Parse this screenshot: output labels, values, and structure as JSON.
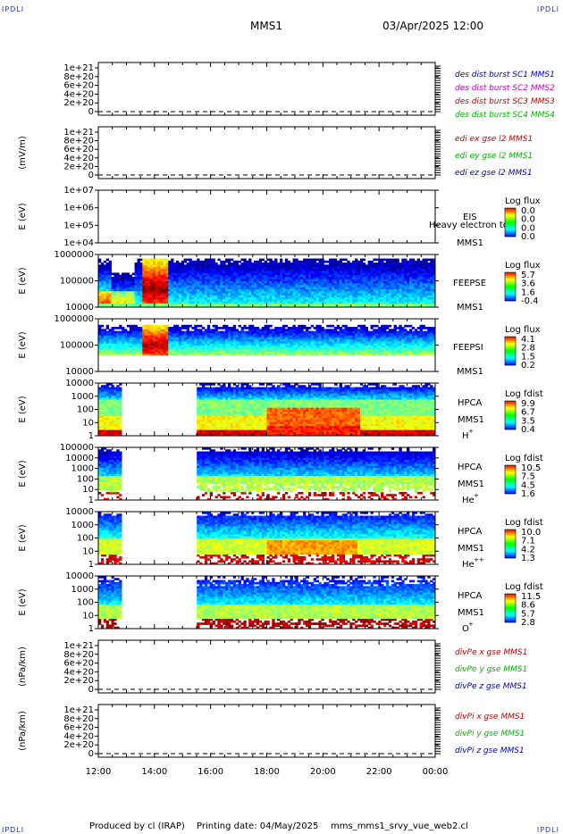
{
  "corners": {
    "tl": "IPDLI",
    "tr": "IPDLI",
    "bl": "IPDLI",
    "br": "IPDLI"
  },
  "header": {
    "spacecraft": "MMS1",
    "datetime": "03/Apr/2025 12:00"
  },
  "footer": {
    "producer": "Produced by cl (IRAP)",
    "printing": "Printing date: 04/May/2025",
    "script": "mms_mms1_srvy_vue_web2.cl"
  },
  "chart_data": {
    "type": "heatmap",
    "x_ticks": [
      "12:00",
      "14:00",
      "16:00",
      "18:00",
      "20:00",
      "22:00",
      "00:00"
    ],
    "x_range_hours": [
      12,
      24
    ],
    "panels": [
      {
        "kind": "line",
        "ylabel": "",
        "yticks": [
          "1e+21",
          "8e+20",
          "6e+20",
          "4e+20",
          "2e+20",
          "0"
        ],
        "legend": [
          {
            "text": "des dist burst SC1 MMS1",
            "color": "#0000cc"
          },
          {
            "text": "des dist burst SC2 MMS2",
            "color": "#cc00cc"
          },
          {
            "text": "des dist burst SC3 MMS3",
            "color": "#cc0000"
          },
          {
            "text": "des dist burst SC4 MMS4",
            "color": "#00bb00"
          }
        ]
      },
      {
        "kind": "line",
        "ylabel": "(mV/m)",
        "yticks": [
          "1e+21",
          "8e+20",
          "6e+20",
          "4e+20",
          "2e+20",
          "0"
        ],
        "legend": [
          {
            "text": "edi ex gse l2 MMS1",
            "color": "#cc0000"
          },
          {
            "text": "edi ey gse l2 MMS1",
            "color": "#00bb00"
          },
          {
            "text": "edi ez gse l2 MMS1",
            "color": "#0000cc"
          }
        ]
      },
      {
        "kind": "spec",
        "ylabel": "E (eV)",
        "yticks": [
          "1e+07",
          "1e+06",
          "1e+05",
          "1e+04"
        ],
        "labels": [
          "EIS",
          "MMS1"
        ],
        "overlay": "Heavy electron to",
        "cb_title": "Log flux",
        "cb_ticks": [
          "0.0",
          "0.0",
          "0.0",
          "0.0"
        ],
        "empty": true
      },
      {
        "kind": "spec",
        "ylabel": "E (eV)",
        "yticks": [
          "1000000",
          "100000",
          "10000"
        ],
        "labels": [
          "FEEPSE",
          "MMS1"
        ],
        "cb_title": "Log flux",
        "cb_ticks": [
          "5.7",
          "3.6",
          "1.6",
          "-0.4"
        ],
        "coverage": [
          [
            12,
            24
          ]
        ],
        "bursts": [
          [
            13.6,
            14.5
          ]
        ],
        "species": "feepse"
      },
      {
        "kind": "spec",
        "ylabel": "E (eV)",
        "yticks": [
          "1000000",
          "100000",
          "10000"
        ],
        "labels": [
          "FEEPSI",
          "MMS1"
        ],
        "cb_title": "Log flux",
        "cb_ticks": [
          "4.1",
          "2.8",
          "1.5",
          "0.2"
        ],
        "coverage": [
          [
            12,
            24
          ]
        ],
        "bursts": [
          [
            13.6,
            14.5
          ]
        ],
        "species": "feepsi"
      },
      {
        "kind": "spec",
        "ylabel": "E (eV)",
        "yticks": [
          "10000",
          "1000",
          "100",
          "10",
          "1"
        ],
        "labels": [
          "HPCA",
          "MMS1"
        ],
        "ion": "H",
        "ion_sup": "+",
        "cb_title": "Log fdist",
        "cb_ticks": [
          "9.9",
          "6.7",
          "3.5",
          "0.4"
        ],
        "coverage": [
          [
            12,
            12.85
          ],
          [
            15.55,
            24
          ]
        ],
        "species": "hplus"
      },
      {
        "kind": "spec",
        "ylabel": "E (eV)",
        "yticks": [
          "100000",
          "10000",
          "1000",
          "100",
          "10",
          "1"
        ],
        "labels": [
          "HPCA",
          "MMS1"
        ],
        "ion": "He",
        "ion_sup": "+",
        "cb_title": "Log fdist",
        "cb_ticks": [
          "10.5",
          "7.5",
          "4.5",
          "1.6"
        ],
        "coverage": [
          [
            12,
            12.85
          ],
          [
            15.55,
            24
          ]
        ],
        "species": "heplus"
      },
      {
        "kind": "spec",
        "ylabel": "E (eV)",
        "yticks": [
          "10000",
          "1000",
          "100",
          "10",
          "1"
        ],
        "labels": [
          "HPCA",
          "MMS1"
        ],
        "ion": "He",
        "ion_sup": "++",
        "cb_title": "Log fdist",
        "cb_ticks": [
          "10.0",
          "7.1",
          "4.2",
          "1.3"
        ],
        "coverage": [
          [
            12,
            12.85
          ],
          [
            15.55,
            24
          ]
        ],
        "species": "hepp"
      },
      {
        "kind": "spec",
        "ylabel": "E (eV)",
        "yticks": [
          "10000",
          "1000",
          "100",
          "10",
          "1"
        ],
        "labels": [
          "HPCA",
          "MMS1"
        ],
        "ion": "O",
        "ion_sup": "+",
        "cb_title": "Log fdist",
        "cb_ticks": [
          "11.5",
          "8.6",
          "5.7",
          "2.8"
        ],
        "coverage": [
          [
            12,
            12.85
          ],
          [
            15.55,
            24
          ]
        ],
        "species": "oplus"
      },
      {
        "kind": "line",
        "ylabel": "(nPa/km)",
        "yticks": [
          "1e+21",
          "8e+20",
          "6e+20",
          "4e+20",
          "2e+20",
          "0"
        ],
        "legend": [
          {
            "text": "divPe x gse MMS1",
            "color": "#cc0000"
          },
          {
            "text": "divPe y gse MMS1",
            "color": "#00bb00"
          },
          {
            "text": "divPe z gse MMS1",
            "color": "#0000cc"
          }
        ]
      },
      {
        "kind": "line",
        "ylabel": "(nPa/km)",
        "yticks": [
          "1e+21",
          "8e+20",
          "6e+20",
          "4e+20",
          "2e+20",
          "0"
        ],
        "legend": [
          {
            "text": "divPi x gse MMS1",
            "color": "#cc0000"
          },
          {
            "text": "divPi y gse MMS1",
            "color": "#00bb00"
          },
          {
            "text": "divPi z gse MMS1",
            "color": "#0000cc"
          }
        ]
      }
    ]
  }
}
